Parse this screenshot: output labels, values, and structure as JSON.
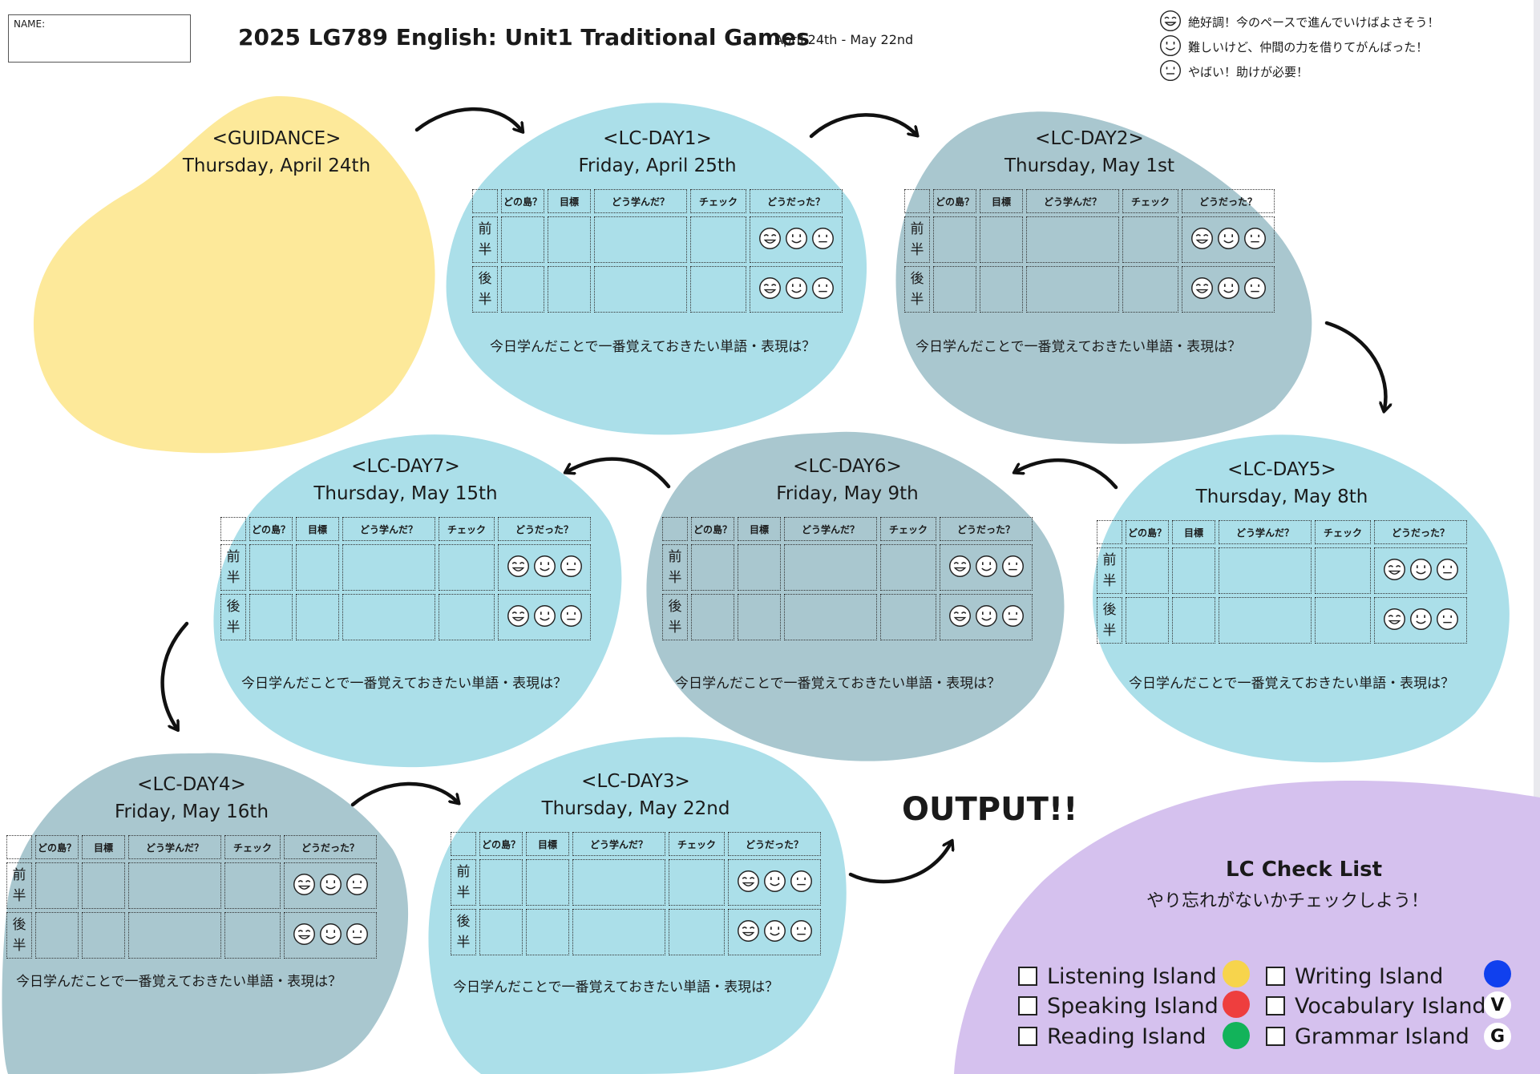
{
  "header": {
    "name_label": "NAME:",
    "title": "2025 LG789 English: Unit1 Traditional Games",
    "date_range": "April 24th - May 22nd"
  },
  "legend": [
    {
      "face": "great",
      "text": "絶好調！今のペースで進んでいけばよさそう！"
    },
    {
      "face": "ok",
      "text": "難しいけど、仲間の力を借りてがんばった！"
    },
    {
      "face": "bad",
      "text": "やばい！助けが必要！"
    }
  ],
  "guidance": {
    "label": "<GUIDANCE>",
    "date": "Thursday, April 24th"
  },
  "table_columns": [
    "どの島？",
    "目標",
    "どう学んだ？",
    "チェック",
    "どうだった？"
  ],
  "halves": [
    "前\n半",
    "後\n半"
  ],
  "prompt": "今日学んだことで一番覚えておきたい単語・表現は？",
  "days": [
    {
      "id": "day1",
      "label": "<LC-DAY1>",
      "date": "Friday, April 25th"
    },
    {
      "id": "day2",
      "label": "<LC-DAY2>",
      "date": "Thursday, May 1st"
    },
    {
      "id": "day5",
      "label": "<LC-DAY5>",
      "date": "Thursday, May 8th"
    },
    {
      "id": "day6",
      "label": "<LC-DAY6>",
      "date": "Friday, May 9th"
    },
    {
      "id": "day7",
      "label": "<LC-DAY7>",
      "date": "Thursday, May 15th"
    },
    {
      "id": "day4",
      "label": "<LC-DAY4>",
      "date": "Friday, May 16th"
    },
    {
      "id": "day3",
      "label": "<LC-DAY3>",
      "date": "Thursday, May 22nd"
    }
  ],
  "output_label": "OUTPUT!!",
  "checklist": {
    "title": "LC Check List",
    "subtitle": "やり忘れがないかチェックしよう！",
    "islands": [
      {
        "label": "Listening Island",
        "color": "#f7d44c",
        "badge": ""
      },
      {
        "label": "Speaking Island",
        "color": "#ee3e3e",
        "badge": ""
      },
      {
        "label": "Reading Island",
        "color": "#12b35a",
        "badge": ""
      },
      {
        "label": "Writing Island",
        "color": "#1040ee",
        "badge": ""
      },
      {
        "label": "Vocabulary Island",
        "color": "#ffffff",
        "badge": "V"
      },
      {
        "label": "Grammar Island",
        "color": "#ffffff",
        "badge": "G"
      }
    ]
  },
  "colors": {
    "guidance_blob": "#fde99a",
    "light_blue_blob": "#abdfe9",
    "gray_blue_blob": "#a9c7cf",
    "checklist_blob": "#d5c1ee"
  }
}
